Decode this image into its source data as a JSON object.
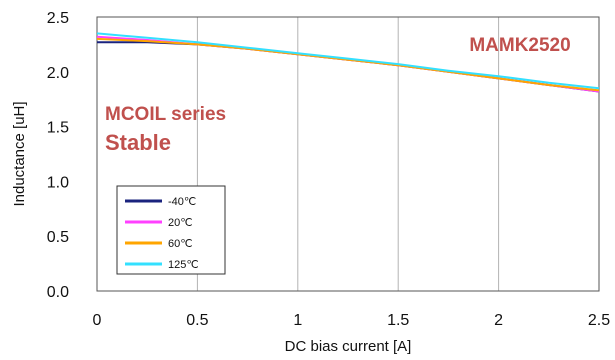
{
  "chart_data": {
    "type": "line",
    "title": "",
    "xlabel": "DC bias current [A]",
    "ylabel": "Inductance [uH]",
    "xlim": [
      0,
      2.5
    ],
    "ylim": [
      0.0,
      2.5
    ],
    "x_ticks": [
      "0",
      "0.5",
      "1",
      "1.5",
      "2",
      "2.5"
    ],
    "y_ticks": [
      "0.0",
      "0.5",
      "1.0",
      "1.5",
      "2.0",
      "2.5"
    ],
    "grid": "vertical",
    "legend_position": "bottom-left",
    "series": [
      {
        "name": "-40℃",
        "color": "#1a237e",
        "x": [
          0,
          0.25,
          0.5,
          0.75,
          1,
          1.25,
          1.5,
          1.75,
          2,
          2.25,
          2.5
        ],
        "y": [
          2.27,
          2.27,
          2.25,
          2.21,
          2.16,
          2.11,
          2.06,
          2.0,
          1.94,
          1.88,
          1.82
        ]
      },
      {
        "name": "20℃",
        "color": "#ff40ff",
        "x": [
          0,
          0.25,
          0.5,
          0.75,
          1,
          1.25,
          1.5,
          1.75,
          2,
          2.25,
          2.5
        ],
        "y": [
          2.32,
          2.29,
          2.25,
          2.21,
          2.16,
          2.11,
          2.06,
          2.0,
          1.94,
          1.88,
          1.82
        ]
      },
      {
        "name": "60℃",
        "color": "#ffa500",
        "x": [
          0,
          0.25,
          0.5,
          0.75,
          1,
          1.25,
          1.5,
          1.75,
          2,
          2.25,
          2.5
        ],
        "y": [
          2.3,
          2.28,
          2.25,
          2.21,
          2.16,
          2.11,
          2.06,
          2.0,
          1.94,
          1.88,
          1.83
        ]
      },
      {
        "name": "125℃",
        "color": "#33e0ff",
        "x": [
          0,
          0.25,
          0.5,
          0.75,
          1,
          1.25,
          1.5,
          1.75,
          2,
          2.25,
          2.5
        ],
        "y": [
          2.35,
          2.31,
          2.27,
          2.22,
          2.17,
          2.12,
          2.07,
          2.01,
          1.96,
          1.9,
          1.85
        ]
      }
    ],
    "annotations": [
      "MAMK2520",
      "MCOIL series",
      "Stable"
    ]
  }
}
